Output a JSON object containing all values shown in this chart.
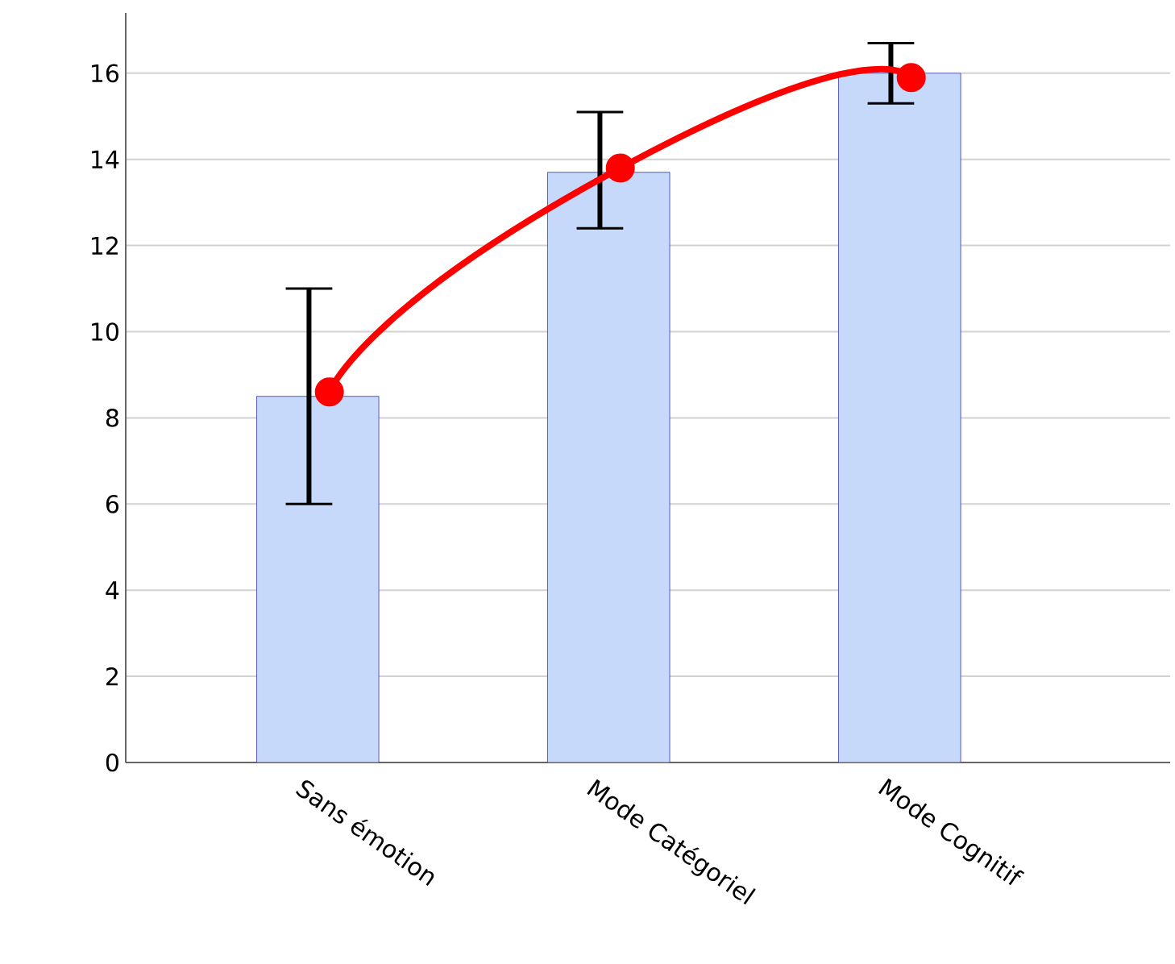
{
  "chart_data": {
    "type": "bar",
    "categories": [
      "Sans émotion",
      "Mode Catégoriel",
      "Mode Cognitif"
    ],
    "series": [
      {
        "color": "#c6d9fa",
        "values": [
          8.5,
          13.7,
          16.0
        ],
        "errors": [
          [
            6.0,
            11.0
          ],
          [
            12.4,
            15.1
          ],
          [
            15.3,
            16.7
          ]
        ]
      },
      {
        "type": "line",
        "color": "#ff0000",
        "values": [
          8.6,
          13.8,
          15.9
        ],
        "marker": "circle",
        "line_style": "solid"
      }
    ],
    "ylim": [
      0,
      17.4
    ],
    "yticks": [
      0,
      2,
      4,
      6,
      8,
      10,
      12,
      14,
      16
    ],
    "grid": "y"
  }
}
